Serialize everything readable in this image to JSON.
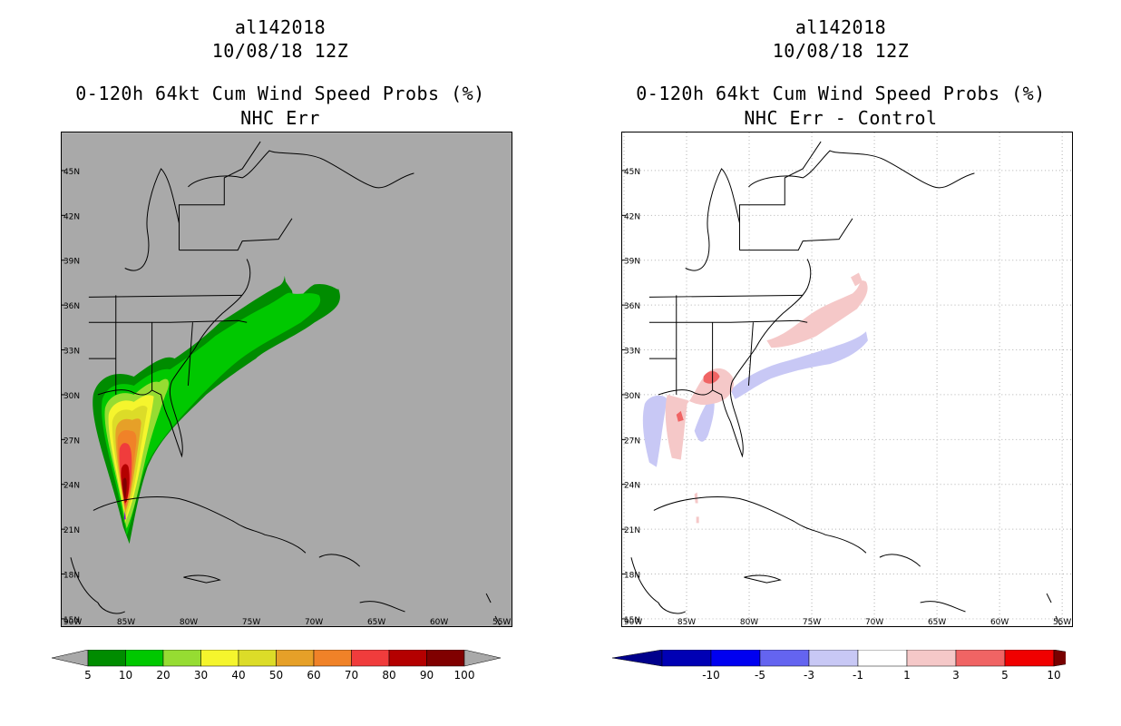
{
  "left": {
    "title_line1": "al142018",
    "title_line2": "10/08/18 12Z",
    "title_line3": "0-120h 64kt Cum Wind Speed Probs (%)",
    "title_line4": "NHC Err",
    "background": "#a9a9a9",
    "colorbar_labels": [
      "5",
      "10",
      "20",
      "30",
      "40",
      "50",
      "60",
      "70",
      "80",
      "90",
      "100"
    ],
    "colorbar_colors": [
      "#008c00",
      "#00c800",
      "#96dc32",
      "#f5f52d",
      "#dcdc28",
      "#e6a028",
      "#f08228",
      "#f03c3c",
      "#b40000",
      "#800000",
      "#8c00dc"
    ],
    "end_arrow_color": "#a9a9a9"
  },
  "right": {
    "title_line1": "al142018",
    "title_line2": "10/08/18 12Z",
    "title_line3": "0-120h 64kt Cum Wind Speed Probs (%)",
    "title_line4": "NHC Err - Control",
    "background": "#ffffff",
    "colorbar_labels": [
      "-10",
      "-5",
      "-3",
      "-1",
      "1",
      "3",
      "5",
      "10"
    ],
    "colorbar_colors": [
      "#0000b4",
      "#0000f0",
      "#6464f0",
      "#c8c8f5",
      "#ffffff",
      "#f5c8c8",
      "#f06464",
      "#f00000"
    ],
    "low_arrow_color": "#00008c",
    "high_arrow_color": "#780000"
  },
  "axes": {
    "lat_labels": [
      "45N",
      "42N",
      "39N",
      "36N",
      "33N",
      "30N",
      "27N",
      "24N",
      "21N",
      "18N",
      "15N"
    ],
    "lon_labels": [
      "90W",
      "85W",
      "80W",
      "75W",
      "70W",
      "65W",
      "60W",
      "55W"
    ]
  }
}
